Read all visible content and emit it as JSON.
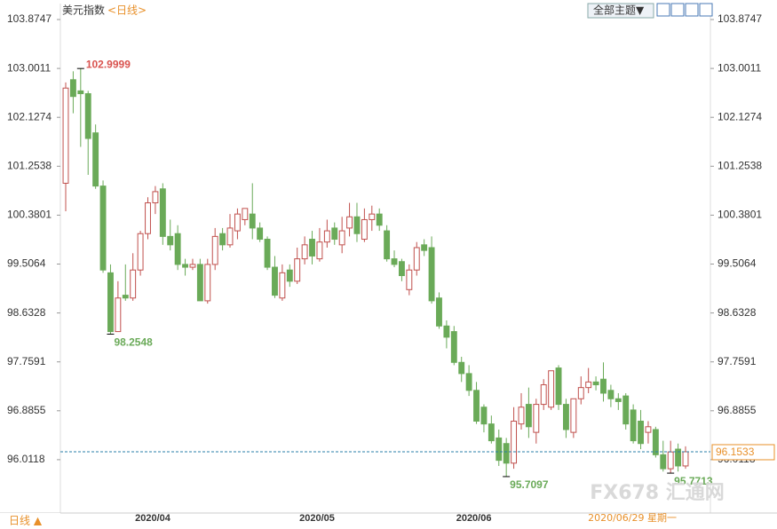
{
  "chart_data": {
    "type": "candlestick",
    "title": "美元指数",
    "period_label": "<日线>",
    "topic_menu": "全部主题▼",
    "period_button": "日线 ▲",
    "cursor_date": "2020/06/29 星期一",
    "watermark": "FX678 汇通网",
    "up_color": "#c0504d",
    "down_color": "#6aaa58",
    "ylim": [
      95.1382,
      103.8747
    ],
    "yticks": [
      96.0118,
      96.8855,
      97.7591,
      98.6328,
      99.5064,
      100.3801,
      101.2538,
      102.1274,
      103.0011,
      103.8747
    ],
    "categories": [
      null,
      null,
      null,
      null,
      null,
      null,
      null,
      null,
      null,
      null,
      "2020/04",
      null,
      null,
      null,
      null,
      null,
      null,
      null,
      null,
      null,
      null,
      null,
      null,
      null,
      null,
      null,
      null,
      null,
      null,
      null,
      null,
      null,
      "2020/05",
      null,
      null,
      null,
      null,
      null,
      null,
      null,
      null,
      null,
      null,
      null,
      null,
      null,
      null,
      null,
      null,
      null,
      null,
      null,
      null,
      "2020/06",
      null,
      null,
      null,
      null,
      null,
      null,
      null,
      null,
      null,
      null,
      null,
      null,
      null,
      null,
      null,
      null,
      null,
      null,
      null,
      null,
      null,
      null,
      null,
      null,
      null,
      null,
      null,
      null,
      null,
      null
    ],
    "open": [
      100.95,
      102.8,
      102.6,
      102.55,
      101.85,
      100.9,
      99.35,
      98.3,
      98.95,
      98.9,
      99.4,
      100.05,
      100.6,
      100.85,
      100.0,
      100.05,
      99.5,
      99.45,
      99.5,
      98.85,
      99.5,
      100.05,
      99.85,
      100.1,
      100.3,
      100.4,
      100.15,
      99.95,
      99.45,
      98.9,
      99.4,
      99.2,
      99.6,
      99.95,
      99.6,
      99.9,
      100.15,
      99.85,
      100.15,
      100.35,
      99.95,
      100.3,
      100.4,
      100.1,
      99.6,
      99.55,
      99.05,
      99.4,
      99.85,
      99.8,
      98.9,
      98.4,
      98.3,
      97.75,
      97.55,
      97.25,
      96.95,
      96.65,
      96.4,
      96.3,
      95.95,
      96.65,
      97.0,
      96.5,
      97.0,
      96.95,
      97.65,
      97.0,
      96.5,
      97.1,
      97.3,
      97.4,
      97.45,
      97.25,
      97.1,
      97.15,
      96.9,
      96.7,
      96.5,
      96.55,
      96.1,
      95.85,
      96.2,
      95.9
    ],
    "high": [
      102.75,
      102.95,
      102.9999,
      102.6,
      102.0,
      101.0,
      99.5,
      99.2,
      99.5,
      99.7,
      100.1,
      100.7,
      100.9,
      100.95,
      100.3,
      100.2,
      99.6,
      99.6,
      99.6,
      99.6,
      100.15,
      100.15,
      100.4,
      100.5,
      100.5,
      100.95,
      100.25,
      100.0,
      99.65,
      99.5,
      99.5,
      99.8,
      100.0,
      100.1,
      100.15,
      100.3,
      100.25,
      100.35,
      100.6,
      100.6,
      100.5,
      100.55,
      100.5,
      100.2,
      99.75,
      99.6,
      99.5,
      99.9,
      99.95,
      100.0,
      99.0,
      98.5,
      98.4,
      97.85,
      97.7,
      97.4,
      97.0,
      96.8,
      96.55,
      96.4,
      96.95,
      97.2,
      97.3,
      97.1,
      97.45,
      97.6,
      97.7,
      97.1,
      97.1,
      97.5,
      97.65,
      97.5,
      97.75,
      97.35,
      97.2,
      97.2,
      97.0,
      96.9,
      96.7,
      96.6,
      96.35,
      96.35,
      96.3,
      96.25
    ],
    "low": [
      100.45,
      102.2,
      101.6,
      101.1,
      100.85,
      99.35,
      98.2548,
      98.3,
      98.85,
      98.85,
      99.3,
      99.95,
      100.4,
      99.85,
      99.75,
      99.4,
      99.3,
      99.4,
      98.85,
      98.8,
      99.4,
      99.75,
      99.8,
      99.95,
      100.2,
      99.95,
      99.9,
      99.4,
      98.9,
      98.85,
      99.1,
      99.15,
      99.5,
      99.5,
      99.55,
      99.8,
      99.85,
      99.7,
      100.0,
      99.9,
      99.9,
      100.1,
      100.1,
      99.55,
      99.45,
      99.2,
      98.95,
      99.3,
      99.65,
      98.8,
      98.35,
      98.0,
      97.7,
      97.4,
      97.15,
      96.65,
      96.5,
      96.3,
      95.9,
      95.7097,
      95.85,
      96.55,
      96.4,
      96.3,
      96.9,
      96.9,
      96.9,
      96.4,
      96.4,
      97.0,
      97.2,
      97.25,
      97.05,
      96.95,
      96.9,
      96.55,
      96.3,
      96.2,
      96.3,
      96.05,
      95.8,
      95.7713,
      95.8,
      95.85
    ],
    "close": [
      102.65,
      102.5,
      102.55,
      101.75,
      100.9,
      99.4,
      98.3,
      98.9,
      98.9,
      99.4,
      100.05,
      100.6,
      100.8,
      100.0,
      99.85,
      99.5,
      99.45,
      99.5,
      98.85,
      99.5,
      100.0,
      99.85,
      100.15,
      100.4,
      100.5,
      100.15,
      99.95,
      99.45,
      98.95,
      99.35,
      99.2,
      99.6,
      99.85,
      99.65,
      99.9,
      100.1,
      99.95,
      100.1,
      100.35,
      100.05,
      100.3,
      100.4,
      100.2,
      99.6,
      99.5,
      99.3,
      99.4,
      99.8,
      99.75,
      98.85,
      98.4,
      98.2,
      97.75,
      97.55,
      97.25,
      96.7,
      96.65,
      96.35,
      96.0,
      95.95,
      96.7,
      96.95,
      96.6,
      97.0,
      97.35,
      97.6,
      97.0,
      96.55,
      97.1,
      97.3,
      97.4,
      97.35,
      97.2,
      97.1,
      97.05,
      96.65,
      96.35,
      96.3,
      96.6,
      96.1,
      95.85,
      96.15,
      95.9,
      96.1533
    ]
  }
}
